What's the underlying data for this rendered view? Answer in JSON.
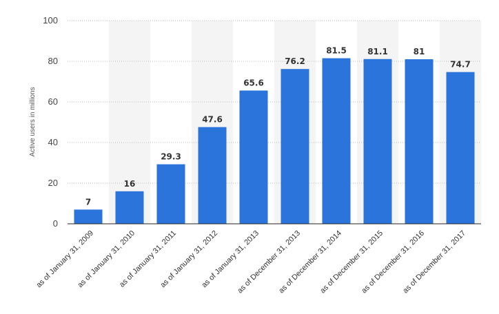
{
  "chart_data": {
    "type": "bar",
    "ylabel": "Active users in millions",
    "ylim": [
      0,
      100
    ],
    "yticks": [
      0,
      20,
      40,
      60,
      80,
      100
    ],
    "grid": true,
    "categories": [
      "as of January 31, 2009",
      "as of January 31, 2010",
      "as of January 31, 2011",
      "as of January 31, 2012",
      "as of January 31, 2013",
      "as of December 31, 2013",
      "as of December 31, 2014",
      "as of December 31, 2015",
      "as of December 31, 2016",
      "as of December 31, 2017"
    ],
    "values": [
      7,
      16,
      29.3,
      47.6,
      65.6,
      76.2,
      81.5,
      81.1,
      81,
      74.7
    ],
    "data_labels": [
      "7",
      "16",
      "29.3",
      "47.6",
      "65.6",
      "76.2",
      "81.5",
      "81.1",
      "81",
      "74.7"
    ],
    "colors": {
      "bar": "#2a74db",
      "band": "#f4f4f4",
      "grid": "#bbbbbb",
      "axis": "#222222"
    }
  }
}
